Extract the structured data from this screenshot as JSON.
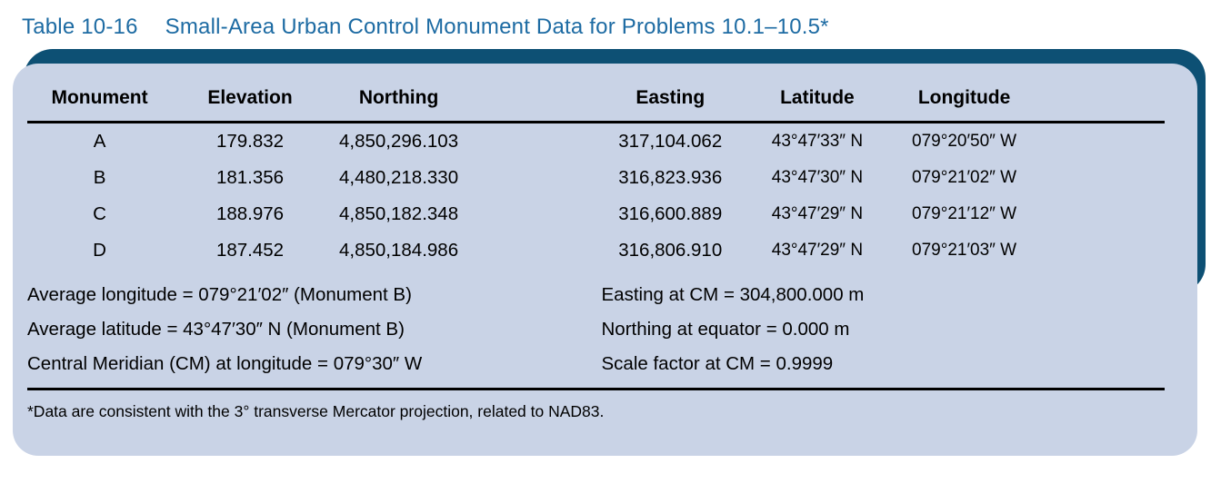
{
  "title": {
    "label": "Table 10-16",
    "text": "Small-Area Urban Control Monument Data for Problems 10.1–10.5*"
  },
  "colors": {
    "panel_bg": "#c9d3e6",
    "panel_edge": "#0d5074",
    "title_blue": "#1d6ba3",
    "rule": "#000000"
  },
  "table": {
    "columns": [
      "Monument",
      "Elevation",
      "Northing",
      "Easting",
      "Latitude",
      "Longitude"
    ],
    "rows": [
      {
        "monument": "A",
        "elevation": "179.832",
        "northing": "4,850,296.103",
        "easting": "317,104.062",
        "latitude": "43°47′33″ N",
        "longitude": "079°20′50″ W"
      },
      {
        "monument": "B",
        "elevation": "181.356",
        "northing": "4,480,218.330",
        "easting": "316,823.936",
        "latitude": "43°47′30″ N",
        "longitude": "079°21′02″ W"
      },
      {
        "monument": "C",
        "elevation": "188.976",
        "northing": "4,850,182.348",
        "easting": "316,600.889",
        "latitude": "43°47′29″ N",
        "longitude": "079°21′12″ W"
      },
      {
        "monument": "D",
        "elevation": "187.452",
        "northing": "4,850,184.986",
        "easting": "316,806.910",
        "latitude": "43°47′29″ N",
        "longitude": "079°21′03″ W"
      }
    ]
  },
  "notes": {
    "left": [
      "Average longitude = 079°21′02″ (Monument B)",
      "Average latitude = 43°47′30″ N (Monument B)",
      "Central Meridian (CM) at longitude = 079°30″ W"
    ],
    "right": [
      "Easting at CM = 304,800.000 m",
      "Northing at equator = 0.000 m",
      "Scale factor at CM = 0.9999"
    ]
  },
  "footnote": "*Data are consistent with the 3° transverse Mercator projection, related to NAD83."
}
